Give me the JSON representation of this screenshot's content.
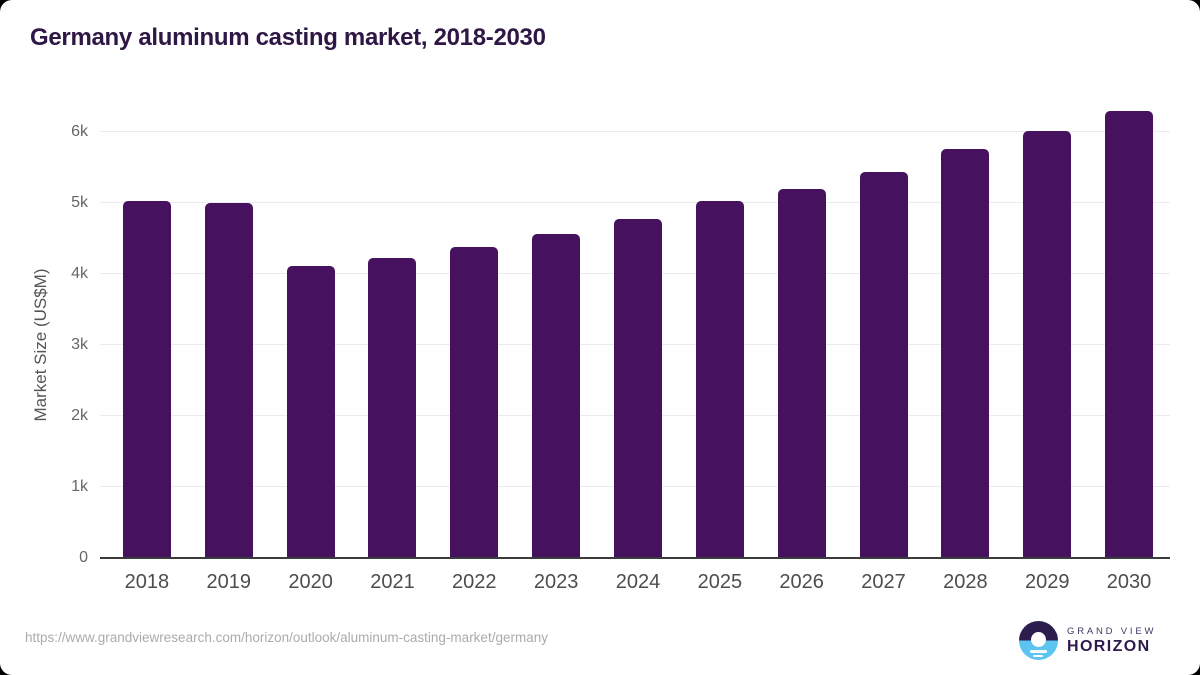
{
  "title": "Germany aluminum casting market, 2018-2030",
  "footer": {
    "url": "https://www.grandviewresearch.com/horizon/outlook/aluminum-casting-market/germany"
  },
  "logo": {
    "line1": "GRAND VIEW",
    "line2": "HORIZON",
    "icon": "sun-over-horizon-icon"
  },
  "colors": {
    "bar": "#461260",
    "title_text": "#2e1745",
    "axis_line": "#3b3b3b",
    "gridline": "#ebebeb",
    "tick_text": "#666666",
    "x_label_text": "#4d4d4d",
    "url_text": "#ababab",
    "logo_purple": "#2d1b4e",
    "logo_blue": "#5bc4f0"
  },
  "chart_data": {
    "type": "bar",
    "title": "Germany aluminum casting market, 2018-2030",
    "xlabel": "",
    "ylabel": "Market Size (US$M)",
    "categories": [
      "2018",
      "2019",
      "2020",
      "2021",
      "2022",
      "2023",
      "2024",
      "2025",
      "2026",
      "2027",
      "2028",
      "2029",
      "2030"
    ],
    "values": [
      5030,
      5000,
      4110,
      4230,
      4380,
      4560,
      4780,
      5030,
      5200,
      5430,
      5760,
      6010,
      6300
    ],
    "ylim": [
      0,
      6500
    ],
    "yticks_values": [
      0,
      1000,
      2000,
      3000,
      4000,
      5000,
      6000
    ],
    "yticks_labels": [
      "0",
      "1k",
      "2k",
      "3k",
      "4k",
      "5k",
      "6k"
    ],
    "grid": true,
    "legend": null
  }
}
